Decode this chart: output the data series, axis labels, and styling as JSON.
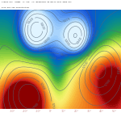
{
  "title_line1": "T+000z UTC  ECMWF  a, s10  VT: Wednesday 08 March 2017 0000 UTC",
  "title_line2": "mslp 500 hPa Geopotential",
  "bg_color": "#ffffff",
  "contour_color": "#556677",
  "contour_linewidth": 0.35,
  "label_color": "#556677",
  "label_fontsize": 3.0,
  "tick_color": "#cc9999",
  "tick_fontsize": 2.5,
  "figsize": [
    1.5,
    1.5
  ],
  "dpi": 100,
  "colormap_colors": [
    "#8B0000",
    "#c82020",
    "#e04010",
    "#e86010",
    "#f08020",
    "#f5a030",
    "#f8c040",
    "#f8e060",
    "#f8f070",
    "#e8f060",
    "#c8e850",
    "#a0d840",
    "#70c040",
    "#40a840",
    "#20a060",
    "#109080",
    "#0080a0",
    "#0068c0",
    "#1050d0",
    "#3070e0",
    "#5090f0",
    "#80b8f8",
    "#a8d4fc",
    "#c8e8fe",
    "#e0f4ff"
  ]
}
